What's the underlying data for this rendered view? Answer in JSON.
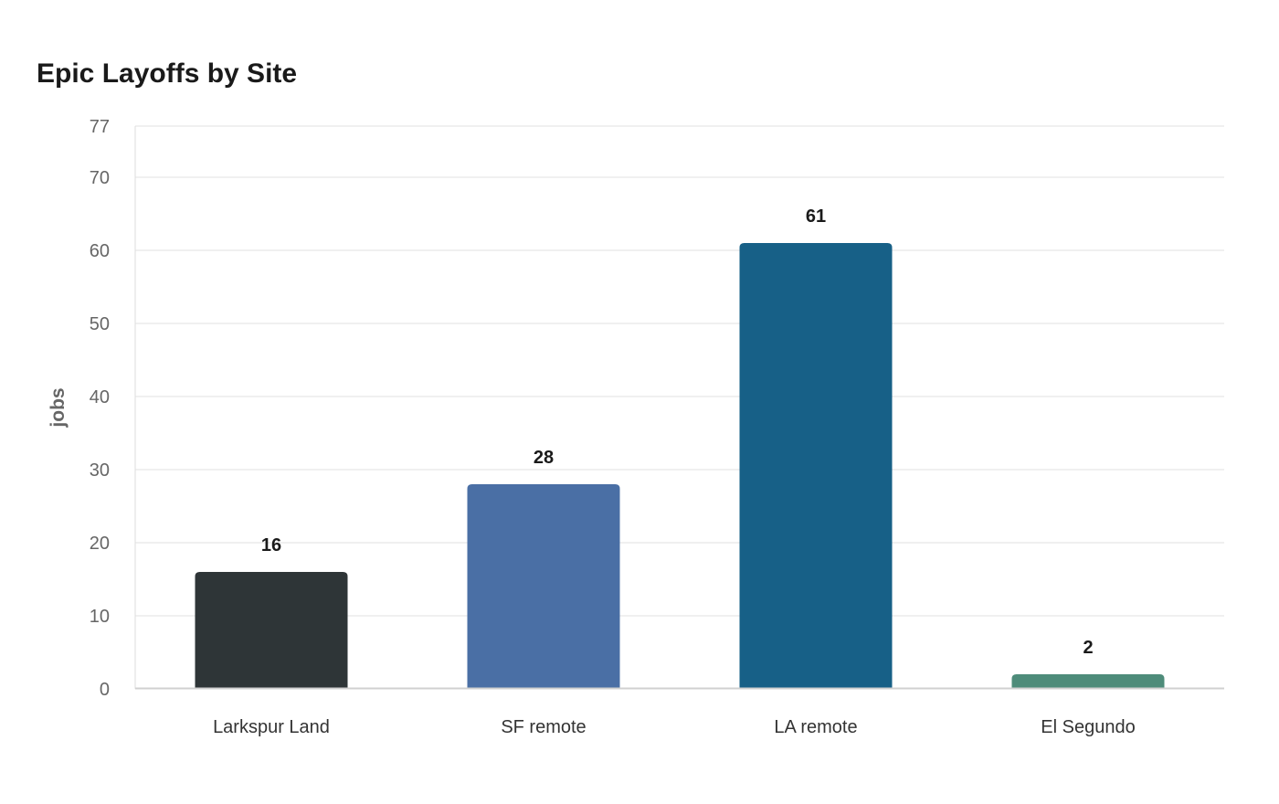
{
  "chart_data": {
    "type": "bar",
    "title": "Epic Layoffs by Site",
    "xlabel": "",
    "ylabel": "jobs",
    "categories": [
      "Larkspur Land",
      "SF remote",
      "LA remote",
      "El Segundo"
    ],
    "values": [
      16,
      28,
      61,
      2
    ],
    "data_labels": [
      "16",
      "28",
      "61",
      "2"
    ],
    "colors": [
      "#2e3537",
      "#4a6fa5",
      "#176087",
      "#4e8c7a"
    ],
    "ylim": [
      0,
      77
    ],
    "yticks": [
      0,
      10,
      20,
      30,
      40,
      50,
      60,
      70,
      77
    ],
    "ytick_labels": [
      "0",
      "10",
      "20",
      "30",
      "40",
      "50",
      "60",
      "70",
      "77"
    ],
    "grid": true,
    "legend": "none"
  }
}
